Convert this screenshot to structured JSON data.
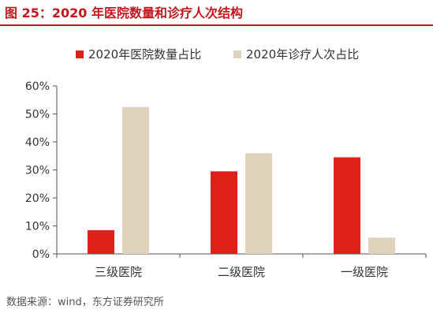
{
  "figure": {
    "title": "图 25：2020 年医院数量和诊疗人次结构",
    "source": "数据来源：wind，东方证券研究所"
  },
  "chart_data": {
    "type": "bar",
    "categories": [
      "三级医院",
      "二级医院",
      "一级医院"
    ],
    "series": [
      {
        "name": "2020年医院数量占比",
        "color": "#e0201b",
        "values": [
          8.5,
          29.5,
          34.5
        ]
      },
      {
        "name": "2020年诊疗人次占比",
        "color": "#dfd3bd",
        "values": [
          52.5,
          36.0,
          5.8
        ]
      }
    ],
    "ylim": [
      0,
      60
    ],
    "yticks": [
      0,
      10,
      20,
      30,
      40,
      50,
      60
    ],
    "ytick_labels": [
      "0%",
      "10%",
      "20%",
      "30%",
      "40%",
      "50%",
      "60%"
    ],
    "legend_position": "top-center",
    "grid": false
  }
}
